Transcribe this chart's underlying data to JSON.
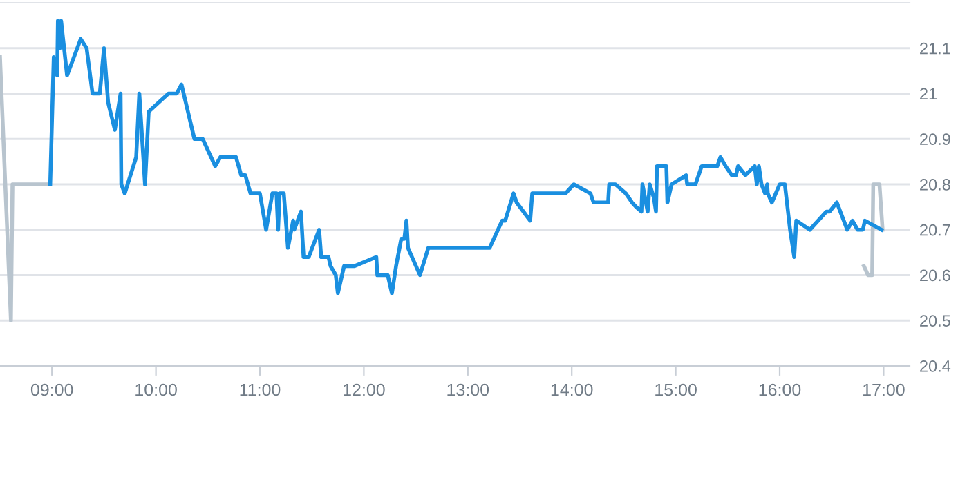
{
  "chart_data": {
    "type": "line",
    "series": [
      {
        "color": "#b8c4ce",
        "x": [
          8.5,
          8.605,
          8.62,
          8.98,
          null,
          16.81,
          16.85,
          16.89,
          16.9,
          16.96,
          16.99
        ],
        "values": [
          21.08,
          20.5,
          20.8,
          20.8,
          null,
          20.62,
          20.6,
          20.6,
          20.8,
          20.8,
          20.7
        ]
      },
      {
        "color": "#1a8fe0",
        "x": [
          8.983,
          9.017,
          9.05,
          9.057,
          9.075,
          9.088,
          9.145,
          9.276,
          9.333,
          9.39,
          9.46,
          9.5,
          9.54,
          9.605,
          9.66,
          9.667,
          9.7,
          9.81,
          9.84,
          9.895,
          9.93,
          10.12,
          10.2,
          10.246,
          10.37,
          10.45,
          10.57,
          10.62,
          10.77,
          10.82,
          10.86,
          10.91,
          11.0,
          11.06,
          11.12,
          11.16,
          11.175,
          11.19,
          11.23,
          11.27,
          11.32,
          11.33,
          11.395,
          11.42,
          11.47,
          11.57,
          11.59,
          11.66,
          11.68,
          11.73,
          11.75,
          11.81,
          11.91,
          12.12,
          12.13,
          12.23,
          12.27,
          12.31,
          12.36,
          12.39,
          12.41,
          12.425,
          12.54,
          12.62,
          13.21,
          13.33,
          13.36,
          13.44,
          13.47,
          13.6,
          13.62,
          13.94,
          14.02,
          14.18,
          14.21,
          14.35,
          14.36,
          14.42,
          14.52,
          14.58,
          14.62,
          14.67,
          14.68,
          14.73,
          14.75,
          14.79,
          14.81,
          14.82,
          14.91,
          14.92,
          14.96,
          15.1,
          15.11,
          15.19,
          15.25,
          15.4,
          15.43,
          15.48,
          15.54,
          15.58,
          15.6,
          15.67,
          15.76,
          15.78,
          15.8,
          15.825,
          15.86,
          15.88,
          15.885,
          15.925,
          16.0,
          16.05,
          16.1,
          16.14,
          16.16,
          16.29,
          16.45,
          16.48,
          16.55,
          16.65,
          16.7,
          16.75,
          16.8,
          16.82,
          16.98
        ],
        "values": [
          20.8,
          21.08,
          21.04,
          21.16,
          21.1,
          21.16,
          21.04,
          21.12,
          21.1,
          21.0,
          21.0,
          21.1,
          20.98,
          20.92,
          21.0,
          20.8,
          20.78,
          20.86,
          21.0,
          20.8,
          20.96,
          21.0,
          21.0,
          21.02,
          20.9,
          20.9,
          20.84,
          20.86,
          20.86,
          20.82,
          20.82,
          20.78,
          20.78,
          20.7,
          20.78,
          20.78,
          20.7,
          20.78,
          20.78,
          20.66,
          20.72,
          20.7,
          20.74,
          20.64,
          20.64,
          20.7,
          20.64,
          20.64,
          20.62,
          20.6,
          20.56,
          20.62,
          20.62,
          20.64,
          20.6,
          20.6,
          20.56,
          20.62,
          20.68,
          20.68,
          20.72,
          20.66,
          20.6,
          20.66,
          20.66,
          20.72,
          20.72,
          20.78,
          20.76,
          20.72,
          20.78,
          20.78,
          20.8,
          20.78,
          20.76,
          20.76,
          20.8,
          20.8,
          20.78,
          20.76,
          20.75,
          20.74,
          20.8,
          20.74,
          20.8,
          20.77,
          20.74,
          20.84,
          20.84,
          20.76,
          20.8,
          20.82,
          20.8,
          20.8,
          20.84,
          20.84,
          20.86,
          20.84,
          20.82,
          20.82,
          20.84,
          20.82,
          20.84,
          20.8,
          20.84,
          20.8,
          20.78,
          20.8,
          20.78,
          20.76,
          20.8,
          20.8,
          20.7,
          20.64,
          20.72,
          20.7,
          20.74,
          20.74,
          20.76,
          20.7,
          20.72,
          20.7,
          20.7,
          20.72,
          20.7
        ]
      }
    ],
    "xlim": [
      8.5,
      17.25
    ],
    "xticks": [
      {
        "value": 9,
        "label": "09:00"
      },
      {
        "value": 10,
        "label": "10:00"
      },
      {
        "value": 11,
        "label": "11:00"
      },
      {
        "value": 12,
        "label": "12:00"
      },
      {
        "value": 13,
        "label": "13:00"
      },
      {
        "value": 14,
        "label": "14:00"
      },
      {
        "value": 15,
        "label": "15:00"
      },
      {
        "value": 16,
        "label": "16:00"
      },
      {
        "value": 17,
        "label": "17:00"
      }
    ],
    "ylim": [
      20.4,
      21.2
    ],
    "yticks": [
      20.4,
      20.5,
      20.6,
      20.7,
      20.8,
      20.9,
      21,
      21.1
    ],
    "grid": "y",
    "legend": false,
    "marker": "none",
    "line_style": "solid"
  }
}
